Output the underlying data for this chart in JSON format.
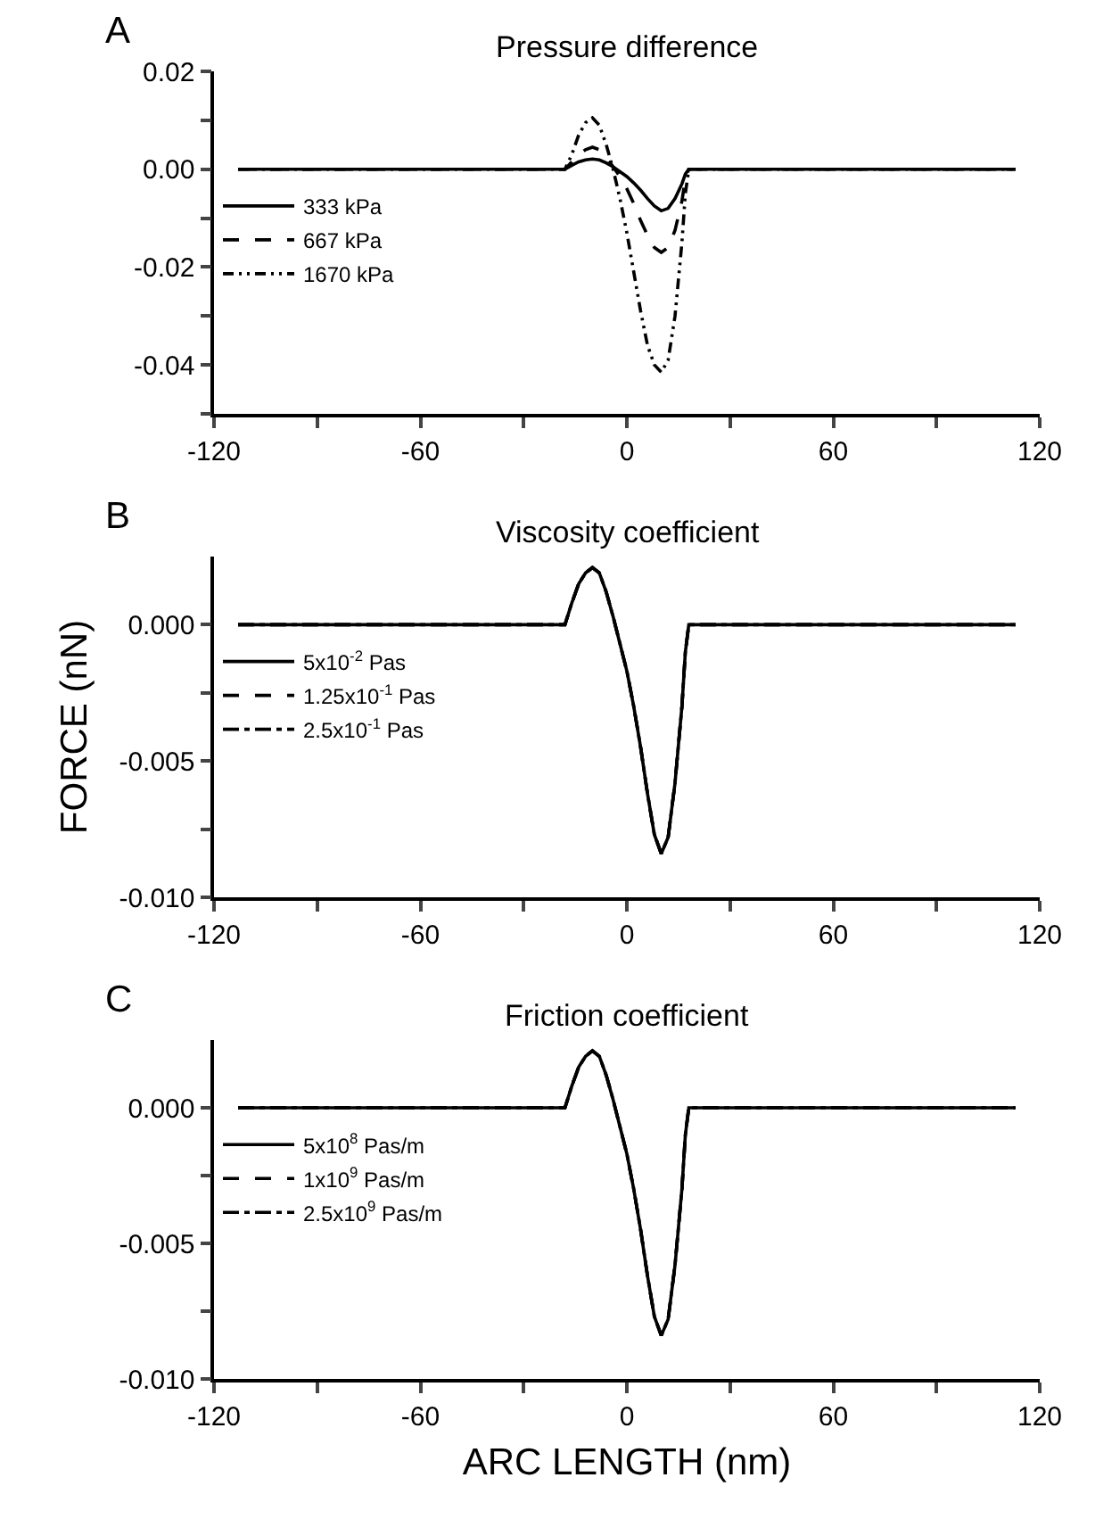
{
  "chart_data": [
    {
      "type": "line",
      "title": "Pressure difference",
      "annotations": [
        "A"
      ],
      "legend": "top left",
      "x": [
        -113,
        -18,
        -16,
        -14,
        -12,
        -10,
        -8,
        -6,
        -4,
        -2,
        0,
        2,
        4,
        6,
        8,
        10,
        12,
        14,
        16,
        17,
        18,
        113
      ],
      "xlim": [
        -120,
        120
      ],
      "xticks": [
        -120,
        {
          "value": -90,
          "label": null
        },
        -60,
        {
          "value": -30,
          "label": null
        },
        0,
        {
          "value": 30,
          "label": null
        },
        60,
        {
          "value": 90,
          "label": null
        },
        120
      ],
      "ylim": [
        -0.05,
        0.02
      ],
      "yticks": [
        {
          "value": -0.05,
          "label": null
        },
        -0.04,
        {
          "value": -0.03,
          "label": null
        },
        -0.02,
        {
          "value": -0.01,
          "label": null
        },
        {
          "value": 0,
          "label": "0.00"
        },
        {
          "value": 0.01,
          "label": null
        },
        0.02
      ],
      "series": [
        {
          "name": "333 kPa",
          "color": "#000000",
          "line_style": "solid",
          "values": [
            0,
            0,
            0.0008,
            0.0015,
            0.0019,
            0.0021,
            0.0019,
            0.0013,
            0.0005,
            -0.0005,
            -0.0015,
            -0.0028,
            -0.0043,
            -0.006,
            -0.0075,
            -0.0085,
            -0.008,
            -0.006,
            -0.003,
            -0.001,
            0,
            0
          ]
        },
        {
          "name": "667 kPa",
          "color": "#000000",
          "line_style": "dashed",
          "values": [
            0,
            0,
            0.0015,
            0.003,
            0.004,
            0.0045,
            0.004,
            0.0025,
            0.0005,
            -0.0015,
            -0.004,
            -0.007,
            -0.0105,
            -0.0135,
            -0.016,
            -0.017,
            -0.016,
            -0.0125,
            -0.0065,
            -0.002,
            0,
            0
          ]
        },
        {
          "name": "1670 kPa",
          "color": "#000000",
          "line_style": "dashdotdot",
          "values": [
            0,
            0,
            0.003,
            0.007,
            0.0095,
            0.0105,
            0.009,
            0.005,
            0.0,
            -0.006,
            -0.013,
            -0.021,
            -0.029,
            -0.036,
            -0.04,
            -0.0415,
            -0.039,
            -0.03,
            -0.015,
            -0.005,
            0,
            0
          ]
        }
      ]
    },
    {
      "type": "line",
      "title": "Viscosity coefficient",
      "annotations": [
        "B"
      ],
      "ylabel": "FORCE (nN)",
      "legend": "top left",
      "x": [
        -113,
        -18,
        -16,
        -14,
        -12,
        -10,
        -8,
        -6,
        -4,
        -2,
        0,
        2,
        4,
        6,
        8,
        10,
        12,
        14,
        16,
        17,
        18,
        113
      ],
      "xlim": [
        -120,
        120
      ],
      "xticks": [
        -120,
        {
          "value": -90,
          "label": null
        },
        -60,
        {
          "value": -30,
          "label": null
        },
        0,
        {
          "value": 30,
          "label": null
        },
        60,
        {
          "value": 90,
          "label": null
        },
        120
      ],
      "ylim": [
        -0.01,
        0.0025
      ],
      "yticks": [
        {
          "value": -0.01,
          "label": "-0.010"
        },
        {
          "value": -0.0075,
          "label": null
        },
        -0.005,
        {
          "value": -0.0025,
          "label": null
        },
        {
          "value": 0,
          "label": "0.000"
        }
      ],
      "series": [
        {
          "name": "5x10$^{-2}$ Pas",
          "color": "#000000",
          "line_style": "solid",
          "values": [
            0,
            0,
            0.0008,
            0.0015,
            0.0019,
            0.0021,
            0.0019,
            0.0012,
            0.0003,
            -0.0007,
            -0.0017,
            -0.003,
            -0.0045,
            -0.0062,
            -0.0077,
            -0.0084,
            -0.0078,
            -0.0058,
            -0.003,
            -0.001,
            0,
            0
          ]
        },
        {
          "name": "1.25x10$^{-1}$ Pas",
          "color": "#000000",
          "line_style": "dashed",
          "values": [
            0,
            0,
            0.0008,
            0.0015,
            0.0019,
            0.0021,
            0.0019,
            0.0012,
            0.0003,
            -0.0007,
            -0.0017,
            -0.003,
            -0.0045,
            -0.0062,
            -0.0077,
            -0.0084,
            -0.0078,
            -0.0058,
            -0.003,
            -0.001,
            0,
            0
          ]
        },
        {
          "name": "2.5x10$^{-1}$ Pas",
          "color": "#000000",
          "line_style": "dashdot",
          "values": [
            0,
            0,
            0.0008,
            0.0015,
            0.0019,
            0.0021,
            0.0019,
            0.0012,
            0.0003,
            -0.0007,
            -0.0017,
            -0.003,
            -0.0045,
            -0.0062,
            -0.0077,
            -0.0084,
            -0.0078,
            -0.0058,
            -0.003,
            -0.001,
            0,
            0
          ]
        }
      ]
    },
    {
      "type": "line",
      "title": "Friction coefficient",
      "annotations": [
        "C"
      ],
      "xlabel": "ARC LENGTH (nm)",
      "legend": "top left",
      "x": [
        -113,
        -18,
        -16,
        -14,
        -12,
        -10,
        -8,
        -6,
        -4,
        -2,
        0,
        2,
        4,
        6,
        8,
        10,
        12,
        14,
        16,
        17,
        18,
        113
      ],
      "xlim": [
        -120,
        120
      ],
      "xticks": [
        -120,
        {
          "value": -90,
          "label": null
        },
        -60,
        {
          "value": -30,
          "label": null
        },
        0,
        {
          "value": 30,
          "label": null
        },
        60,
        {
          "value": 90,
          "label": null
        },
        120
      ],
      "ylim": [
        -0.01,
        0.0025
      ],
      "yticks": [
        {
          "value": -0.01,
          "label": "-0.010"
        },
        {
          "value": -0.0075,
          "label": null
        },
        -0.005,
        {
          "value": -0.0025,
          "label": null
        },
        {
          "value": 0,
          "label": "0.000"
        }
      ],
      "series": [
        {
          "name": "5x10$^{8}$ Pas/m",
          "color": "#000000",
          "line_style": "solid",
          "values": [
            0,
            0,
            0.0008,
            0.0015,
            0.0019,
            0.0021,
            0.0019,
            0.0012,
            0.0003,
            -0.0007,
            -0.0017,
            -0.003,
            -0.0045,
            -0.0062,
            -0.0077,
            -0.0084,
            -0.0078,
            -0.0058,
            -0.003,
            -0.001,
            0,
            0
          ]
        },
        {
          "name": "1x10$^{9}$ Pas/m",
          "color": "#000000",
          "line_style": "dashed",
          "values": [
            0,
            0,
            0.0008,
            0.0015,
            0.0019,
            0.0021,
            0.0019,
            0.0012,
            0.0003,
            -0.0007,
            -0.0017,
            -0.003,
            -0.0045,
            -0.0062,
            -0.0077,
            -0.0084,
            -0.0078,
            -0.0058,
            -0.003,
            -0.001,
            0,
            0
          ]
        },
        {
          "name": "2.5x10$^{9}$ Pas/m",
          "color": "#000000",
          "line_style": "dashdot",
          "values": [
            0,
            0,
            0.0008,
            0.0015,
            0.0019,
            0.0021,
            0.0019,
            0.0012,
            0.0003,
            -0.0007,
            -0.0017,
            -0.003,
            -0.0045,
            -0.0062,
            -0.0077,
            -0.0084,
            -0.0078,
            -0.0058,
            -0.003,
            -0.001,
            0,
            0
          ]
        }
      ]
    }
  ]
}
